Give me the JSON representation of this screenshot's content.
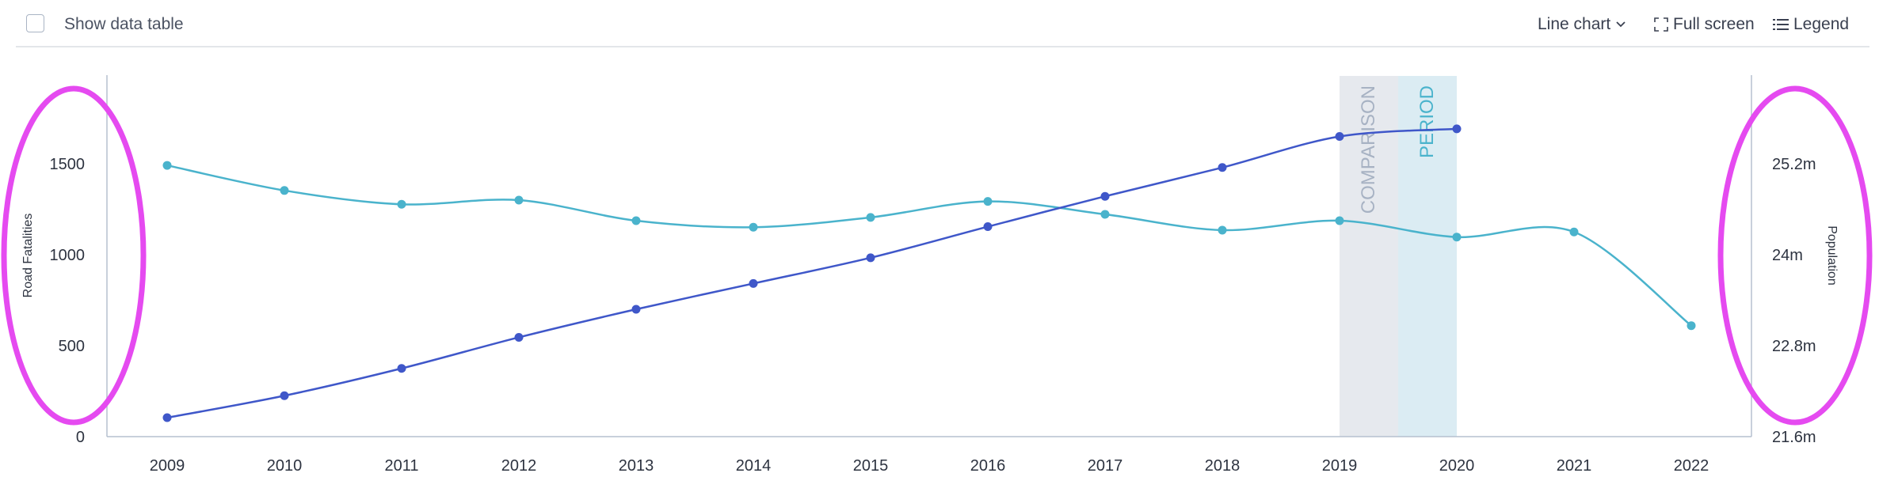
{
  "toolbar": {
    "show_data_table_label": "Show data table",
    "show_data_table_checked": false,
    "chart_type_label": "Line chart",
    "full_screen_label": "Full screen",
    "legend_label": "Legend"
  },
  "chart_data": {
    "type": "line",
    "x": [
      2009,
      2010,
      2011,
      2012,
      2013,
      2014,
      2015,
      2016,
      2017,
      2018,
      2019,
      2020,
      2021,
      2022
    ],
    "xlabel": "",
    "y_left": {
      "label": "Road Fatalities",
      "ticks": [
        "0",
        "500",
        "1000",
        "1500"
      ],
      "range": [
        0,
        1800
      ]
    },
    "y_right": {
      "label": "Population",
      "ticks": [
        "21.6m",
        "22.8m",
        "24m",
        "25.2m"
      ],
      "range": [
        21.6,
        25.8
      ]
    },
    "series": [
      {
        "axis": "left",
        "color": "#4ab3cc",
        "values": [
          1491,
          1353,
          1277,
          1300,
          1187,
          1151,
          1205,
          1293,
          1222,
          1135,
          1187,
          1097,
          1125,
          610
        ]
      },
      {
        "axis": "right",
        "color": "#3f57c9",
        "values": [
          21.85,
          22.14,
          22.5,
          22.91,
          23.28,
          23.62,
          23.96,
          24.37,
          24.77,
          25.15,
          25.56,
          25.66,
          null,
          null
        ]
      }
    ],
    "bands": [
      {
        "label": "COMPARISON",
        "from": 2019,
        "to": 2019.5,
        "color": "#e6e9ee",
        "text_color": "#a7b2c3"
      },
      {
        "label": "PERIOD",
        "from": 2019.5,
        "to": 2020,
        "color": "#dbecf3",
        "text_color": "#4ab3cc"
      }
    ],
    "grid": false,
    "annotations": [
      {
        "shape": "ellipse",
        "color": "#e54af0",
        "around": "left axis"
      },
      {
        "shape": "ellipse",
        "color": "#e54af0",
        "around": "right axis"
      }
    ]
  }
}
